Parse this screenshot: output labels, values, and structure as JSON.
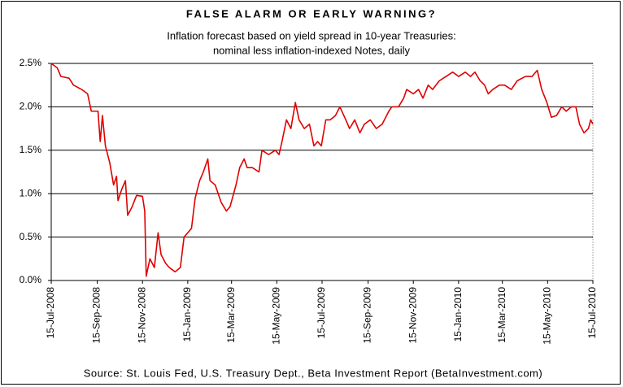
{
  "chart_data": {
    "type": "line",
    "title": "FALSE ALARM OR EARLY WARNING?",
    "subtitle": [
      "Inflation forecast based on yield spread in 10-year Treasuries:",
      "nominal less inflation-indexed Notes, daily"
    ],
    "source": "Source: St. Louis Fed, U.S. Treasury Dept., Beta Investment Report (BetaInvestment.com)",
    "x": [
      "2008-07-15",
      "2008-07-23",
      "2008-07-28",
      "2008-08-08",
      "2008-08-14",
      "2008-08-25",
      "2008-09-02",
      "2008-09-07",
      "2008-09-16",
      "2008-09-19",
      "2008-09-22",
      "2008-09-26",
      "2008-10-02",
      "2008-10-07",
      "2008-10-11",
      "2008-10-13",
      "2008-10-18",
      "2008-10-23",
      "2008-10-26",
      "2008-11-01",
      "2008-11-07",
      "2008-11-15",
      "2008-11-18",
      "2008-11-20",
      "2008-11-25",
      "2008-12-01",
      "2008-12-06",
      "2008-12-10",
      "2008-12-16",
      "2008-12-21",
      "2008-12-29",
      "2009-01-05",
      "2009-01-10",
      "2009-01-15",
      "2009-01-20",
      "2009-01-25",
      "2009-01-31",
      "2009-02-05",
      "2009-02-11",
      "2009-02-14",
      "2009-02-21",
      "2009-03-01",
      "2009-03-08",
      "2009-03-13",
      "2009-03-21",
      "2009-03-26",
      "2009-04-01",
      "2009-04-05",
      "2009-04-12",
      "2009-04-21",
      "2009-04-25",
      "2009-05-04",
      "2009-05-13",
      "2009-05-18",
      "2009-05-22",
      "2009-05-28",
      "2009-06-03",
      "2009-06-09",
      "2009-06-14",
      "2009-06-21",
      "2009-06-28",
      "2009-07-04",
      "2009-07-09",
      "2009-07-14",
      "2009-07-20",
      "2009-07-26",
      "2009-08-02",
      "2009-08-08",
      "2009-08-16",
      "2009-08-21",
      "2009-08-28",
      "2009-09-04",
      "2009-09-10",
      "2009-09-18",
      "2009-09-26",
      "2009-10-04",
      "2009-10-13",
      "2009-10-17",
      "2009-10-26",
      "2009-11-02",
      "2009-11-06",
      "2009-11-15",
      "2009-11-22",
      "2009-11-28",
      "2009-12-05",
      "2009-12-11",
      "2009-12-20",
      "2009-12-29",
      "2010-01-07",
      "2010-01-15",
      "2010-01-24",
      "2010-01-31",
      "2010-02-06",
      "2010-02-13",
      "2010-02-19",
      "2010-02-24",
      "2010-03-02",
      "2010-03-11",
      "2010-03-18",
      "2010-03-27",
      "2010-04-04",
      "2010-04-15",
      "2010-04-24",
      "2010-05-01",
      "2010-05-07",
      "2010-05-14",
      "2010-05-20",
      "2010-05-27",
      "2010-06-03",
      "2010-06-09",
      "2010-06-16",
      "2010-06-22",
      "2010-06-27",
      "2010-07-03",
      "2010-07-09",
      "2010-07-12",
      "2010-07-15"
    ],
    "series": [
      {
        "color": "#e00000",
        "values": [
          2.5,
          2.45,
          2.35,
          2.33,
          2.25,
          2.2,
          2.15,
          1.95,
          1.95,
          1.6,
          1.9,
          1.55,
          1.35,
          1.1,
          1.2,
          0.92,
          1.05,
          1.15,
          0.75,
          0.85,
          0.98,
          0.97,
          0.8,
          0.05,
          0.25,
          0.15,
          0.55,
          0.3,
          0.2,
          0.15,
          0.1,
          0.15,
          0.5,
          0.55,
          0.6,
          0.95,
          1.15,
          1.25,
          1.4,
          1.15,
          1.1,
          0.9,
          0.8,
          0.85,
          1.1,
          1.3,
          1.4,
          1.3,
          1.3,
          1.25,
          1.5,
          1.45,
          1.5,
          1.45,
          1.6,
          1.85,
          1.75,
          2.05,
          1.85,
          1.75,
          1.8,
          1.55,
          1.6,
          1.55,
          1.85,
          1.85,
          1.9,
          2.0,
          1.85,
          1.75,
          1.85,
          1.7,
          1.8,
          1.85,
          1.75,
          1.8,
          1.95,
          2.0,
          2.0,
          2.1,
          2.2,
          2.15,
          2.2,
          2.1,
          2.25,
          2.2,
          2.3,
          2.35,
          2.4,
          2.35,
          2.4,
          2.35,
          2.4,
          2.3,
          2.25,
          2.15,
          2.2,
          2.25,
          2.25,
          2.2,
          2.3,
          2.35,
          2.35,
          2.42,
          2.2,
          2.05,
          1.88,
          1.9,
          2.0,
          1.95,
          2.0,
          2.0,
          1.8,
          1.7,
          1.75,
          1.85,
          1.8
        ]
      }
    ],
    "xlim": [
      "2008-07-15",
      "2010-07-15"
    ],
    "xticks": [
      {
        "value": "2008-07-15",
        "label": "15-Jul-2008"
      },
      {
        "value": "2008-09-15",
        "label": "15-Sep-2008"
      },
      {
        "value": "2008-11-15",
        "label": "15-Nov-2008"
      },
      {
        "value": "2009-01-15",
        "label": "15-Jan-2009"
      },
      {
        "value": "2009-03-15",
        "label": "15-Mar-2009"
      },
      {
        "value": "2009-05-15",
        "label": "15-May-2009"
      },
      {
        "value": "2009-07-15",
        "label": "15-Jul-2009"
      },
      {
        "value": "2009-09-15",
        "label": "15-Sep-2009"
      },
      {
        "value": "2009-11-15",
        "label": "15-Nov-2009"
      },
      {
        "value": "2010-01-15",
        "label": "15-Jan-2010"
      },
      {
        "value": "2010-03-15",
        "label": "15-Mar-2010"
      },
      {
        "value": "2010-05-15",
        "label": "15-May-2010"
      },
      {
        "value": "2010-07-15",
        "label": "15-Jul-2010"
      }
    ],
    "ylim": [
      0,
      2.5
    ],
    "yticks": [
      {
        "value": 0,
        "label": "0.0%"
      },
      {
        "value": 0.5,
        "label": "0.5%"
      },
      {
        "value": 1,
        "label": "1.0%"
      },
      {
        "value": 1.5,
        "label": "1.5%"
      },
      {
        "value": 2,
        "label": "2.0%"
      },
      {
        "value": 2.5,
        "label": "2.5%"
      }
    ],
    "grid": true
  }
}
